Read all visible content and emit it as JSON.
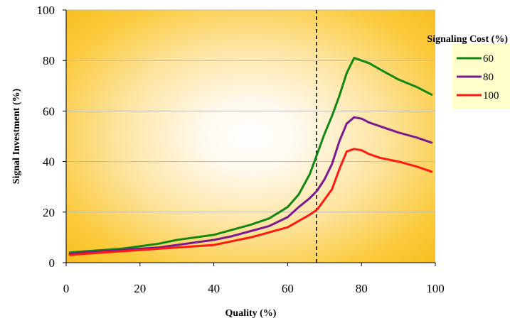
{
  "chart_data": {
    "type": "line",
    "xlabel": "Quality (%)",
    "ylabel": "Signal Investment (%)",
    "xlim": [
      0,
      100
    ],
    "ylim": [
      0,
      100
    ],
    "xticks": [
      0,
      20,
      40,
      60,
      80,
      100
    ],
    "yticks": [
      0,
      20,
      40,
      60,
      80,
      100
    ],
    "grid": "horizontal",
    "background": "radial white-to-gold gradient",
    "vertical_reference_line": {
      "x": 67.8,
      "style": "dashed"
    },
    "legend": {
      "title": "Signaling Cost (%)",
      "placement": "right",
      "entries": [
        "60",
        "80",
        "100"
      ]
    },
    "x": [
      1,
      5,
      10,
      15,
      20,
      25,
      30,
      35,
      40,
      45,
      50,
      55,
      60,
      63,
      66,
      68,
      70,
      72,
      74,
      76,
      78,
      80,
      82,
      85,
      90,
      95,
      99
    ],
    "series": [
      {
        "name": "60",
        "color": "#118811",
        "values": [
          4,
          4.5,
          5,
          5.5,
          6.5,
          7.5,
          9,
          10,
          11,
          13,
          15,
          17.5,
          22,
          27,
          35,
          43,
          51,
          58,
          66,
          75,
          81,
          80,
          79,
          76.5,
          72.5,
          69.5,
          66.5
        ]
      },
      {
        "name": "80",
        "color": "#7a1a8f",
        "values": [
          3.5,
          4,
          4.5,
          5,
          5.5,
          6,
          7,
          8,
          9,
          10.5,
          12.5,
          14.5,
          18,
          22,
          25.5,
          28.5,
          33,
          39,
          48,
          55,
          57.5,
          57,
          55.5,
          54,
          51.5,
          49.5,
          47.5
        ]
      },
      {
        "name": "100",
        "color": "#ff1a10",
        "values": [
          3,
          3.5,
          4,
          4.5,
          5,
          5.5,
          6,
          6.5,
          7,
          8.5,
          10,
          12,
          14,
          16.5,
          19,
          21,
          25,
          29,
          37,
          44,
          45,
          44.5,
          43,
          41.5,
          40,
          38,
          36
        ]
      }
    ]
  }
}
